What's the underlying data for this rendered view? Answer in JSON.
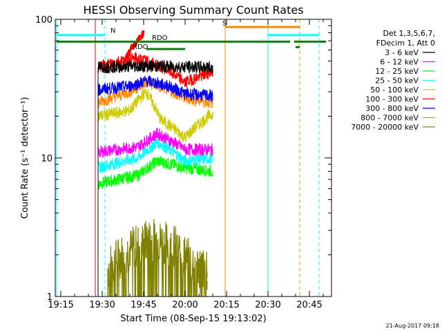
{
  "chart_data": {
    "type": "line",
    "title": "HESSI Observing Summary Count Rates",
    "xlabel": "Start Time (08-Sep-15 19:13:02)",
    "ylabel": "Count Rate (s⁻¹ detector⁻¹)",
    "ylog": true,
    "ylim": [
      1,
      100
    ],
    "xlim_minutes": [
      1153,
      1253
    ],
    "x_ticks": [
      {
        "label": "19:15",
        "t": 1155
      },
      {
        "label": "19:30",
        "t": 1170
      },
      {
        "label": "19:45",
        "t": 1185
      },
      {
        "label": "20:00",
        "t": 1200
      },
      {
        "label": "20:15",
        "t": 1215
      },
      {
        "label": "20:30",
        "t": 1230
      },
      {
        "label": "20:45",
        "t": 1245
      }
    ],
    "y_ticks": [
      {
        "label": "1",
        "v": 1
      },
      {
        "label": "10",
        "v": 10
      },
      {
        "label": "100",
        "v": 100
      }
    ],
    "legend_header": [
      "Det 1,3,5,6,7,",
      "FDecim 1, Att 0"
    ],
    "legend_position": "right",
    "series": [
      {
        "name": "3 - 6 keV",
        "color": "#000000",
        "t": [
          1168.5,
          1184,
          1210
        ],
        "values": [
          45,
          46,
          45
        ]
      },
      {
        "name": "6 - 12 keV",
        "color": "#ff00ff",
        "t": [
          1168.5,
          1183,
          1190,
          1200,
          1210
        ],
        "values": [
          11,
          12,
          15,
          11.5,
          11.5
        ]
      },
      {
        "name": "12 - 25 keV",
        "color": "#00ff00",
        "t": [
          1168.5,
          1183,
          1190,
          1200,
          1210
        ],
        "values": [
          6.5,
          7.5,
          9.5,
          8.5,
          8
        ]
      },
      {
        "name": "25 - 50 keV",
        "color": "#00ffff",
        "t": [
          1168.5,
          1183,
          1190,
          1200,
          1210
        ],
        "values": [
          8.5,
          10,
          13,
          9.5,
          10
        ]
      },
      {
        "name": "50 - 100 keV",
        "color": "#cccc00",
        "t": [
          1168.5,
          1180,
          1186,
          1191,
          1200,
          1210
        ],
        "values": [
          20,
          22,
          30,
          19,
          14,
          21
        ]
      },
      {
        "name": "100 - 300 keV",
        "color": "#ff0000",
        "t": [
          1168.5,
          1176,
          1182,
          1186,
          1193,
          1200,
          1210
        ],
        "values": [
          45,
          50,
          52,
          50,
          44,
          35,
          42
        ]
      },
      {
        "name": "300 - 800 keV",
        "color": "#0000ff",
        "t": [
          1168.5,
          1180,
          1186,
          1194,
          1200,
          1210
        ],
        "values": [
          31,
          33,
          36,
          33,
          29,
          28
        ]
      },
      {
        "name": "800 - 7000 keV",
        "color": "#ff8800",
        "t": [
          1168.5,
          1180,
          1186,
          1194,
          1200,
          1210
        ],
        "values": [
          25,
          30,
          35,
          31,
          27,
          25
        ]
      },
      {
        "name": "7000 - 20000 keV",
        "color": "#808000",
        "t": [
          1172,
          1180,
          1188,
          1195,
          1202,
          1208
        ],
        "values": [
          1.6,
          2.2,
          2.6,
          2.4,
          1.8,
          1.5
        ]
      }
    ],
    "flare_ramp": {
      "color": "#ff0000",
      "t": [
        1178,
        1185
      ],
      "values": [
        50,
        80
      ]
    },
    "vertical_markers": [
      {
        "t": 1153.5,
        "color": "#00ffff",
        "style": "solid"
      },
      {
        "t": 1167.5,
        "color": "#ff0000",
        "style": "solid"
      },
      {
        "t": 1171,
        "color": "#00ffff",
        "style": "dashed"
      },
      {
        "t": 1214.5,
        "color": "#ff8800",
        "style": "solid"
      },
      {
        "t": 1230,
        "color": "#00ffff",
        "style": "solid"
      },
      {
        "t": 1241.5,
        "color": "#ff8800",
        "style": "dashed"
      },
      {
        "t": 1248.5,
        "color": "#00ffff",
        "style": "dashed"
      }
    ],
    "state_bars": [
      {
        "color": "#00ffff",
        "value": 77,
        "segments": [
          [
            1153.5,
            1171
          ],
          [
            1230,
            1248.5
          ]
        ]
      },
      {
        "color": "#ff8800",
        "value": 88,
        "segments": [
          [
            1214.5,
            1241.5
          ]
        ]
      },
      {
        "color": "#008000",
        "value": 69,
        "segments": [
          [
            1153.5,
            1238
          ],
          [
            1239.5,
            1251
          ]
        ]
      },
      {
        "color": "#008000",
        "value": 61,
        "segments": [
          [
            1186,
            1200
          ]
        ]
      },
      {
        "color": "#008000",
        "value": 63,
        "segments": [
          [
            1240,
            1241.5
          ]
        ]
      }
    ],
    "annotations": [
      {
        "text": "N",
        "color": "#00ffff",
        "t": 1173,
        "value": 80
      },
      {
        "text": "S",
        "color": "#ff8800",
        "t": 1213.5,
        "value": 90
      },
      {
        "text": "RDO",
        "color": "#008000",
        "t": 1188,
        "value": 71
      },
      {
        "text": "RDO",
        "color": "#008000",
        "t": 1181,
        "value": 61
      }
    ]
  },
  "footer_timestamp": "21-Aug-2017 09:18"
}
